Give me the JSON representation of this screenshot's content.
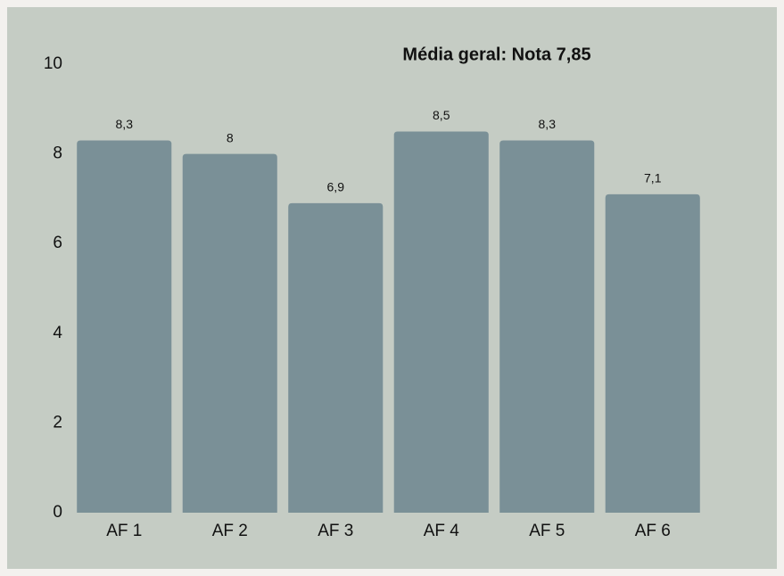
{
  "chart_data": {
    "type": "bar",
    "title": "Média geral: Nota 7,85",
    "categories": [
      "AF 1",
      "AF 2",
      "AF 3",
      "AF 4",
      "AF 5",
      "AF 6"
    ],
    "values": [
      8.3,
      8,
      6.9,
      8.5,
      8.3,
      7.1
    ],
    "value_labels": [
      "8,3",
      "8",
      "6,9",
      "8,5",
      "8,3",
      "7,1"
    ],
    "color": "#7a9097",
    "ylim": [
      0,
      10
    ],
    "yticks": [
      0,
      2,
      4,
      6,
      8,
      10
    ],
    "grid": false
  }
}
